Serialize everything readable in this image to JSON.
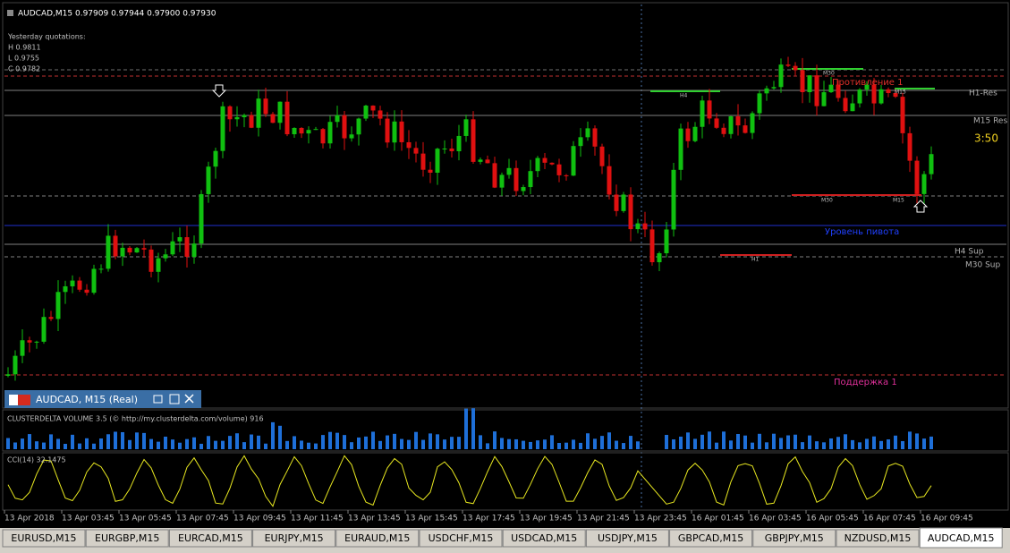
{
  "header": {
    "quote": "AUDCAD,M15  0.97909 0.97944 0.97900 0.97930"
  },
  "yesterday": {
    "title": "Yesterday quotations:",
    "high": "H 0.9811",
    "low": "L 0.9755",
    "close": "C 0.9782"
  },
  "levels": {
    "resistance_1": "Противление 1",
    "h1_res": "H1-Res",
    "m15_res": "M15 Res",
    "pivot": "Уровень пивота",
    "h4_sup": "H4 Sup",
    "m30_sup": "M30 Sup",
    "support_1": "Поддержка 1"
  },
  "timer": "3:50",
  "markers": {
    "h4": "H4",
    "m30_top": "M30",
    "m15_top": "M15",
    "m30_low": "M30",
    "m15_low": "M15",
    "h1": "H1"
  },
  "subwindow": {
    "title": "AUDCAD, M15 (Real)"
  },
  "volume_indicator": {
    "label": "CLUSTERDELTA VOLUME 3.5 (© http://my.clusterdelta.com/volume) 916"
  },
  "cci_indicator": {
    "label": "CCI(14) 32.1475"
  },
  "time_axis": [
    "13 Apr 2018",
    "13 Apr 03:45",
    "13 Apr 05:45",
    "13 Apr 07:45",
    "13 Apr 09:45",
    "13 Apr 11:45",
    "13 Apr 13:45",
    "13 Apr 15:45",
    "13 Apr 17:45",
    "13 Apr 19:45",
    "13 Apr 21:45",
    "13 Apr 23:45",
    "16 Apr 01:45",
    "16 Apr 03:45",
    "16 Apr 05:45",
    "16 Apr 07:45",
    "16 Apr 09:45"
  ],
  "tabs": [
    "EURUSD,M15",
    "EURGBP,M15",
    "EURCAD,M15",
    "EURJPY,M15",
    "EURAUD,M15",
    "USDCHF,M15",
    "USDCAD,M15",
    "USDJPY,M15",
    "GBPCAD,M15",
    "GBPJPY,M15",
    "NZDUSD,M15",
    "AUDCAD,M15"
  ],
  "active_tab": 11
}
